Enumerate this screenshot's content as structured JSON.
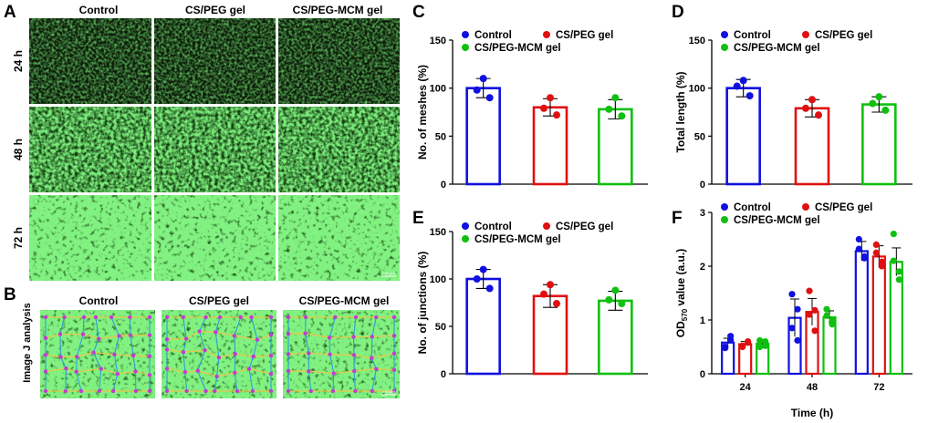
{
  "panels": {
    "A": {
      "letter": "A",
      "columns": [
        "Control",
        "CS/PEG gel",
        "CS/PEG-MCM gel"
      ],
      "rows": [
        "24 h",
        "48 h",
        "72 h"
      ],
      "scale_bar": "100 μm"
    },
    "B": {
      "letter": "B",
      "side_label": "Image J analysis",
      "columns": [
        "Control",
        "CS/PEG gel",
        "CS/PEG-MCM gel"
      ],
      "scale_bar": "100 μm"
    }
  },
  "colors": {
    "Control": "#1010e0",
    "CS/PEG gel": "#e01010",
    "CS/PEG-MCM gel": "#10c010",
    "cell_green": "#2fd22f",
    "background_dark": "#0b1a08"
  },
  "chart_data": [
    {
      "id": "C",
      "letter": "C",
      "type": "bar",
      "categories": [
        "Control",
        "CS/PEG gel",
        "CS/PEG-MCM gel"
      ],
      "values": [
        100,
        80,
        78
      ],
      "errors": [
        10,
        9,
        10
      ],
      "points": [
        [
          98,
          110,
          90
        ],
        [
          79,
          90,
          72
        ],
        [
          78,
          90,
          71
        ]
      ],
      "ylabel": "No. of meshes (%)",
      "ylim": [
        0,
        150
      ],
      "yticks": [
        0,
        50,
        100,
        150
      ],
      "legend": [
        "Control",
        "CS/PEG gel",
        "CS/PEG-MCM gel"
      ]
    },
    {
      "id": "D",
      "letter": "D",
      "type": "bar",
      "categories": [
        "Control",
        "CS/PEG gel",
        "CS/PEG-MCM gel"
      ],
      "values": [
        100,
        79,
        83
      ],
      "errors": [
        9,
        9,
        8
      ],
      "points": [
        [
          102,
          108,
          92
        ],
        [
          79,
          88,
          72
        ],
        [
          84,
          91,
          77
        ]
      ],
      "ylabel": "Total length (%)",
      "ylim": [
        0,
        150
      ],
      "yticks": [
        0,
        50,
        100,
        150
      ],
      "legend": [
        "Control",
        "CS/PEG gel",
        "CS/PEG-MCM gel"
      ]
    },
    {
      "id": "E",
      "letter": "E",
      "type": "bar",
      "categories": [
        "Control",
        "CS/PEG gel",
        "CS/PEG-MCM gel"
      ],
      "values": [
        100,
        82,
        77
      ],
      "errors": [
        10,
        12,
        10
      ],
      "points": [
        [
          100,
          110,
          90
        ],
        [
          84,
          94,
          74
        ],
        [
          78,
          88,
          74
        ]
      ],
      "ylabel": "No. of junctions (%)",
      "ylim": [
        0,
        150
      ],
      "yticks": [
        0,
        50,
        100,
        150
      ],
      "legend": [
        "Control",
        "CS/PEG gel",
        "CS/PEG-MCM gel"
      ]
    },
    {
      "id": "F",
      "letter": "F",
      "type": "bar",
      "categories": [
        "24",
        "48",
        "72"
      ],
      "series": [
        {
          "name": "Control",
          "values": [
            0.58,
            1.04,
            2.28
          ],
          "errors": [
            0.08,
            0.35,
            0.18
          ],
          "points": [
            [
              0.5,
              0.63,
              0.48,
              0.7
            ],
            [
              1.48,
              0.62,
              0.85,
              1.2
            ],
            [
              2.5,
              2.18,
              2.32,
              2.15
            ]
          ]
        },
        {
          "name": "CS/PEG gel",
          "values": [
            0.55,
            1.15,
            2.18
          ],
          "errors": [
            0.05,
            0.25,
            0.2
          ],
          "points": [
            [
              0.52,
              0.6,
              0.5,
              0.58
            ],
            [
              1.54,
              0.8,
              1.1,
              1.18
            ],
            [
              2.4,
              2.0,
              2.25,
              2.08
            ]
          ]
        },
        {
          "name": "CS/PEG-MCM gel",
          "values": [
            0.56,
            1.05,
            2.08
          ],
          "errors": [
            0.06,
            0.12,
            0.26
          ],
          "points": [
            [
              0.62,
              0.52,
              0.5,
              0.6
            ],
            [
              1.2,
              0.92,
              1.08,
              1.0
            ],
            [
              2.6,
              1.9,
              2.1,
              1.75
            ]
          ]
        }
      ],
      "xlabel": "Time (h)",
      "ylabel": "OD570 value (a.u.)",
      "ylabel_parts": {
        "main": "OD",
        "sub": "570",
        "rest": " value (a.u.)"
      },
      "ylim": [
        0,
        3
      ],
      "yticks": [
        0,
        1,
        2,
        3
      ],
      "legend": [
        "Control",
        "CS/PEG gel",
        "CS/PEG-MCM gel"
      ]
    }
  ]
}
